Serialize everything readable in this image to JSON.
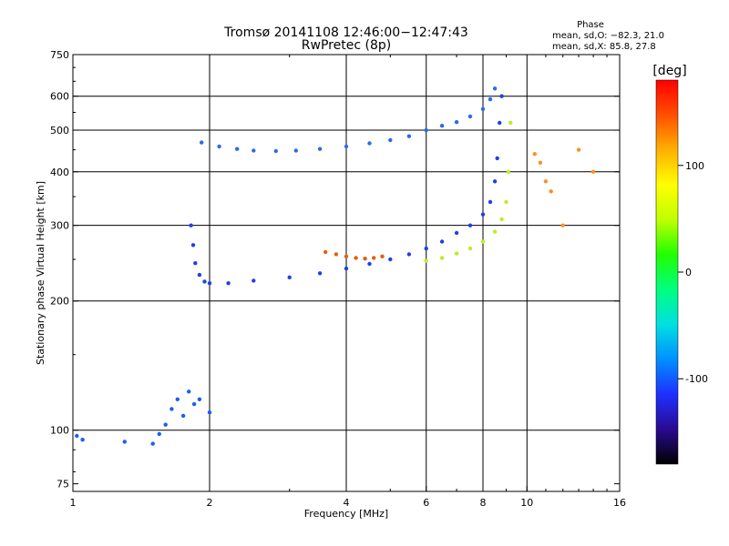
{
  "chart_data": {
    "type": "scatter",
    "title": "Tromsø 20141108 12:46:00−12:47:43",
    "subtitle": "RwPretec (8p)",
    "xlabel": "Frequency [MHz]",
    "ylabel": "Stationary phase Virtual Height [km]",
    "x_scale": "log",
    "y_scale": "log",
    "xlim": [
      1,
      16
    ],
    "ylim": [
      72,
      750
    ],
    "x_ticks": [
      1,
      2,
      4,
      6,
      8,
      10,
      16
    ],
    "x_gridlines": [
      2,
      4,
      6,
      8,
      10
    ],
    "y_ticks": [
      75,
      100,
      200,
      300,
      400,
      500,
      600,
      750
    ],
    "y_gridlines": [
      100,
      200,
      300,
      400,
      500,
      600
    ],
    "grid": true,
    "legend": {
      "title": "Phase",
      "lines": [
        "mean, sd,O:  −82.3, 21.0",
        "mean, sd,X:   85.8, 27.8"
      ],
      "placement": "top-right"
    },
    "colorbar": {
      "label": "[deg]",
      "ticks": [
        100,
        0,
        -100
      ],
      "range": [
        -180,
        180
      ],
      "stops": [
        "#000000",
        "#2a0a90",
        "#1e30ff",
        "#0090ff",
        "#00e0e0",
        "#00ff80",
        "#20ff00",
        "#c0ff00",
        "#ffff00",
        "#ffb000",
        "#ff5000",
        "#ff0000"
      ]
    },
    "series": [
      {
        "name": "",
        "color": "#2a6ce6",
        "x": [
          1.92,
          2.1,
          2.3,
          2.5,
          2.8,
          3.1,
          3.5,
          4.0,
          4.5,
          5.0,
          5.5,
          6.0,
          6.5,
          7.0,
          7.5,
          8.0,
          8.3,
          8.5
        ],
        "y": [
          468,
          458,
          452,
          448,
          447,
          448,
          452,
          458,
          466,
          474,
          484,
          500,
          512,
          522,
          538,
          560,
          590,
          625
        ]
      },
      {
        "name": "",
        "color": "#2040e8",
        "x": [
          1.82,
          1.84,
          1.86,
          1.9,
          1.95,
          2.0,
          2.2,
          2.5,
          3.0,
          3.5,
          4.0,
          4.5,
          5.0,
          5.5,
          6.0,
          6.5,
          7.0,
          7.5,
          8.0,
          8.3,
          8.5,
          8.6,
          8.7,
          8.8
        ],
        "y": [
          300,
          270,
          245,
          230,
          222,
          220,
          220,
          223,
          227,
          232,
          238,
          244,
          250,
          257,
          265,
          275,
          288,
          300,
          318,
          340,
          380,
          430,
          520,
          600
        ]
      },
      {
        "name": "",
        "color": "#b8f020",
        "x": [
          6.0,
          6.5,
          7.0,
          7.5,
          8.0,
          8.5,
          8.8,
          9.0,
          9.1,
          9.2
        ],
        "y": [
          248,
          252,
          258,
          265,
          275,
          290,
          310,
          340,
          400,
          520
        ]
      },
      {
        "name": "",
        "color": "#e06010",
        "x": [
          3.6,
          3.8,
          4.0,
          4.2,
          4.4,
          4.6,
          4.8
        ],
        "y": [
          260,
          257,
          254,
          252,
          251,
          252,
          254
        ]
      },
      {
        "name": "",
        "color": "#1860f0",
        "x": [
          1.02,
          1.05,
          1.3,
          1.5,
          1.55,
          1.6,
          1.65,
          1.7,
          1.75,
          1.8,
          1.85,
          1.9,
          2.0
        ],
        "y": [
          97,
          95,
          94,
          93,
          98,
          103,
          112,
          118,
          108,
          123,
          115,
          118,
          110
        ]
      },
      {
        "name": "",
        "color": "#ff9020",
        "x": [
          10.4,
          10.7,
          11.0,
          11.3,
          12.0,
          13.0,
          14.0
        ],
        "y": [
          440,
          420,
          380,
          360,
          300,
          450,
          400
        ]
      }
    ]
  }
}
